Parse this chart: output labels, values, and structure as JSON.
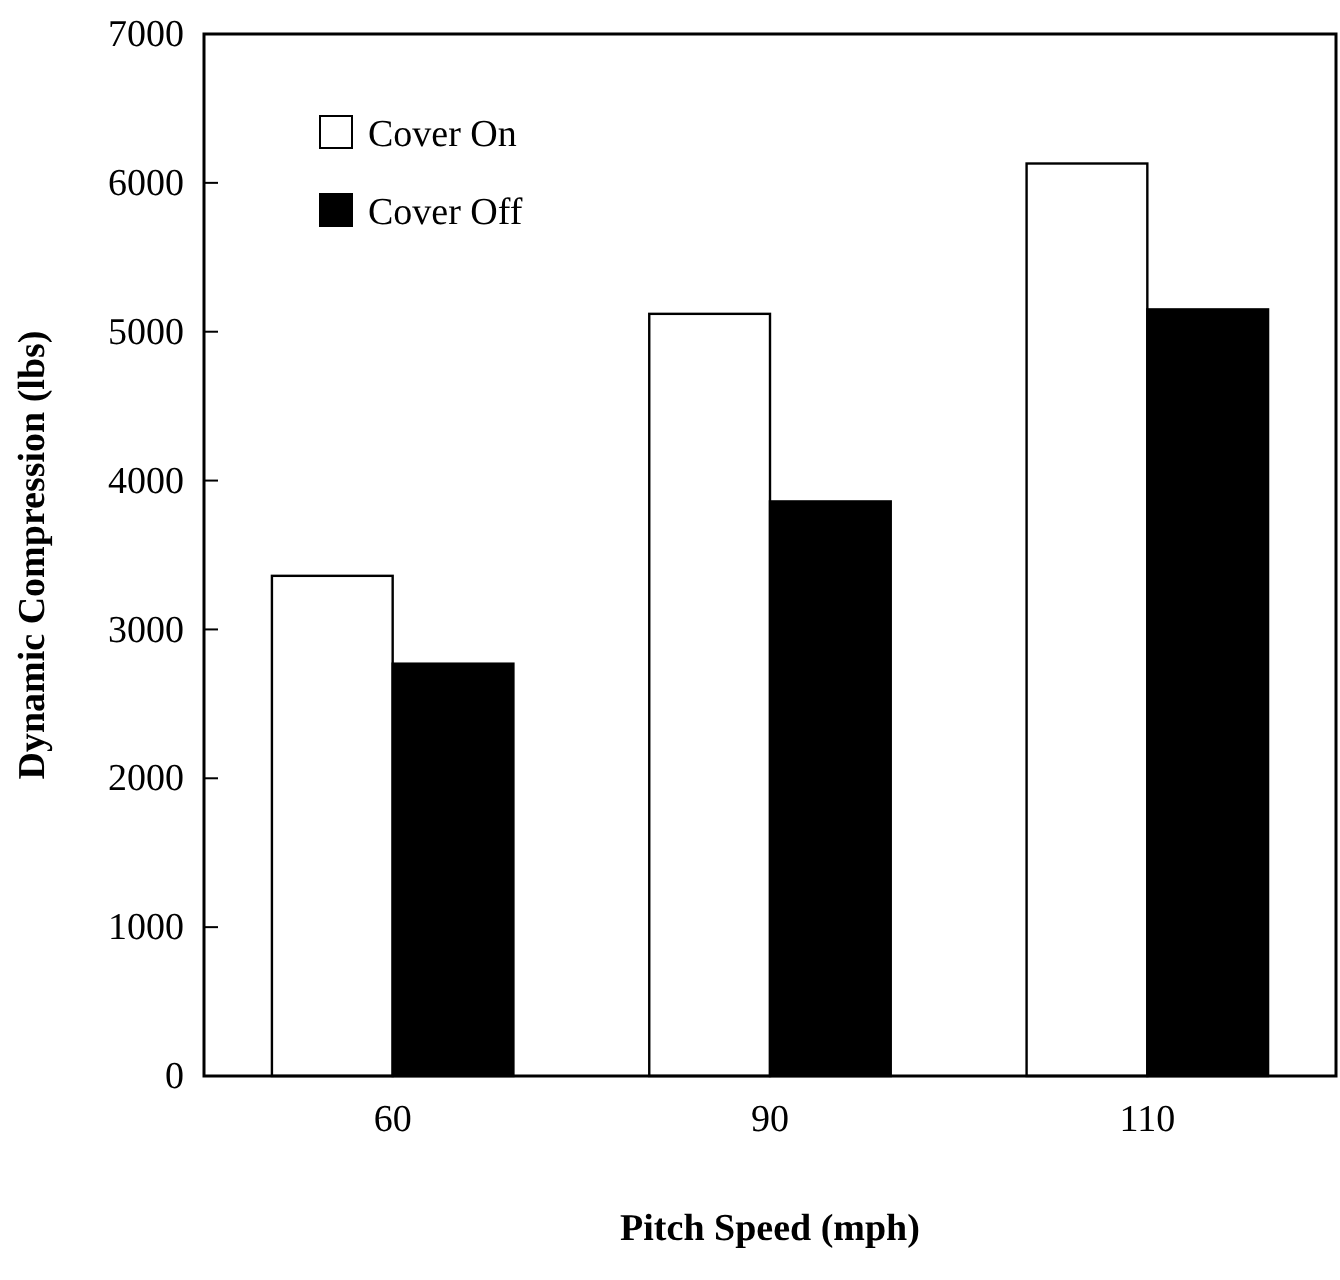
{
  "chart_data": {
    "type": "bar",
    "xlabel": "Pitch Speed (mph)",
    "ylabel": "Dynamic Compression (lbs)",
    "categories": [
      "60",
      "90",
      "110"
    ],
    "series": [
      {
        "name": "Cover On",
        "color": "#ffffff",
        "values": [
          3360,
          5120,
          6130
        ]
      },
      {
        "name": "Cover Off",
        "color": "#000000",
        "values": [
          2770,
          3860,
          5150
        ]
      }
    ],
    "ylim": [
      0,
      7000
    ],
    "yticks": [
      0,
      1000,
      2000,
      3000,
      4000,
      5000,
      6000,
      7000
    ],
    "grid": false,
    "legend": "top left"
  }
}
